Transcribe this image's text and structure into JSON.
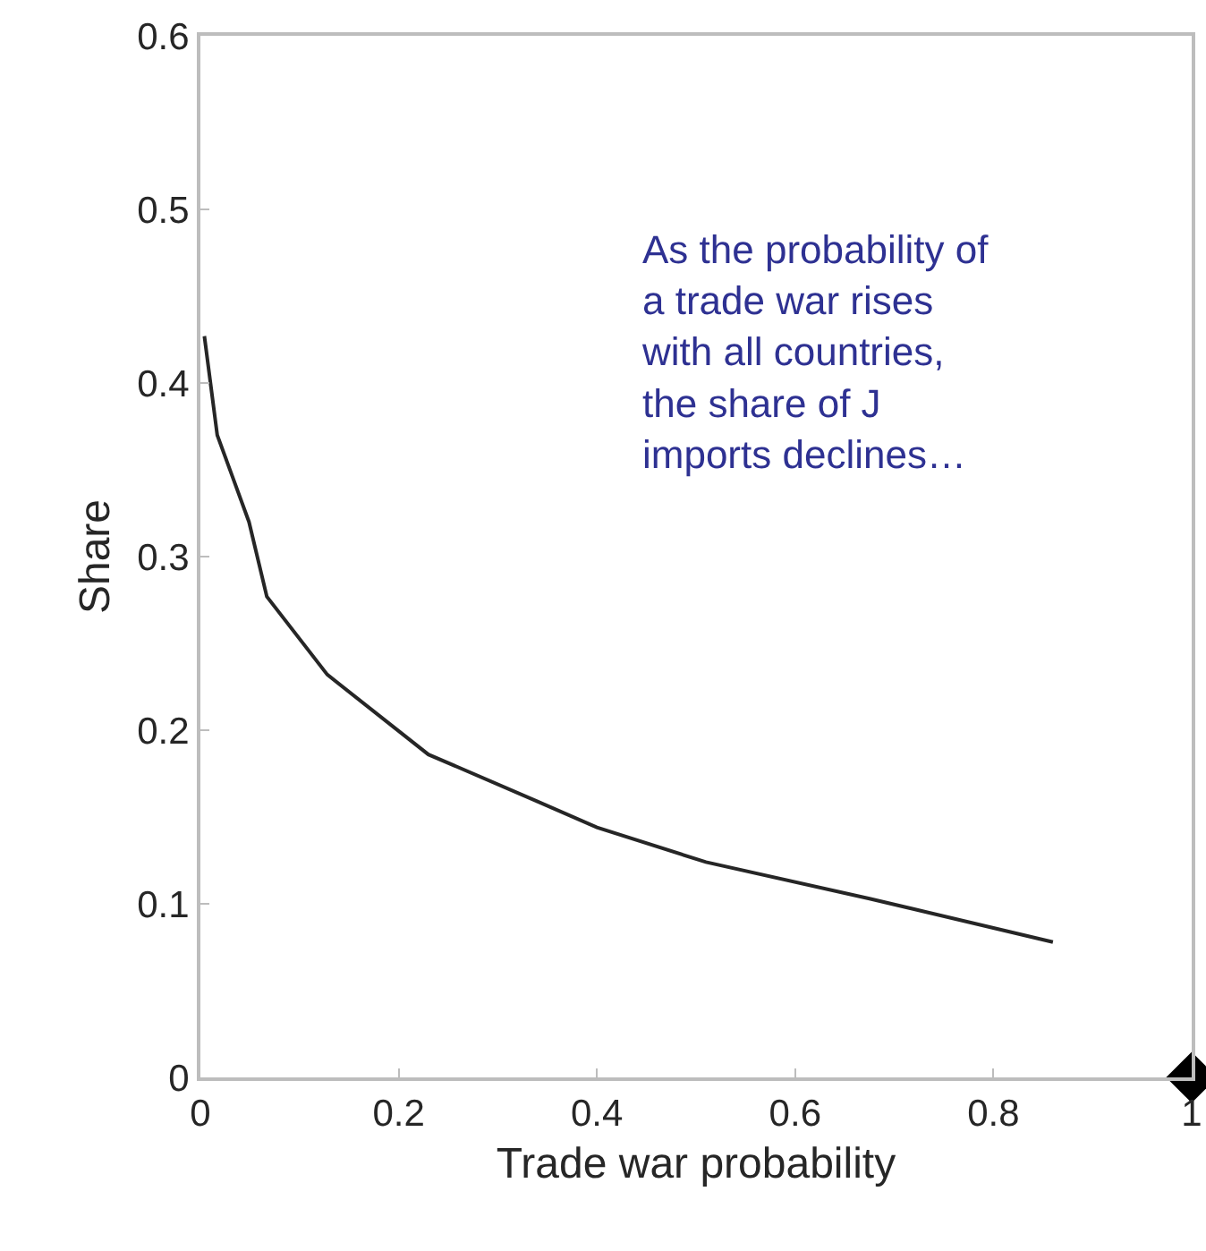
{
  "chart_data": {
    "type": "line",
    "xlabel": "Trade war probability",
    "ylabel": "Share",
    "xlim": [
      0,
      1
    ],
    "xticks": [
      0,
      0.2,
      0.4,
      0.6,
      0.8,
      1
    ],
    "ylim": [
      0,
      0.6
    ],
    "yticks": [
      0,
      0.1,
      0.2,
      0.3,
      0.4,
      0.5,
      0.6
    ],
    "marker": "none",
    "line_style": "solid",
    "series": [
      {
        "color": "#262626",
        "x": [
          0.004,
          0.017,
          0.049,
          0.067,
          0.128,
          0.23,
          0.34,
          0.4,
          0.51,
          0.675,
          0.86
        ],
        "values": [
          0.427,
          0.37,
          0.32,
          0.277,
          0.232,
          0.186,
          0.159,
          0.144,
          0.124,
          0.103,
          0.078
        ]
      },
      {
        "type": "scatter",
        "marker": "diamond",
        "color": "#000000",
        "x": [
          1
        ],
        "values": [
          0
        ]
      }
    ],
    "annotations": [
      "As the probability of\na trade war rises\nwith all countries,\nthe share of J\nimports declines…"
    ]
  }
}
